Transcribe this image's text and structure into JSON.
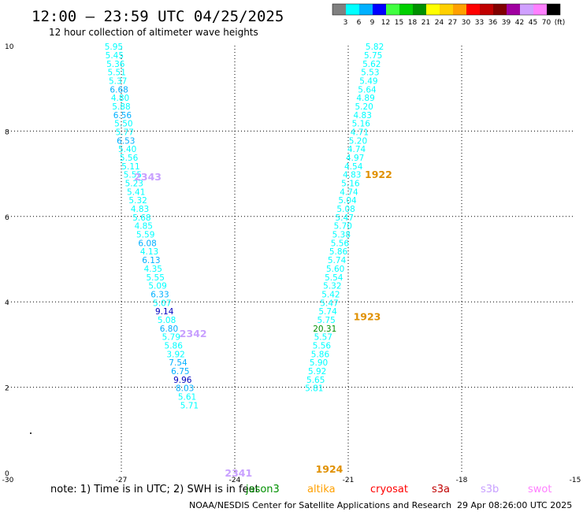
{
  "header": {
    "title": "12:00 – 23:59 UTC 04/25/2025",
    "subtitle": "12 hour collection of altimeter wave heights"
  },
  "colorbar": {
    "colors": [
      "#808080",
      "#00ffff",
      "#00b0ff",
      "#0000ff",
      "#40ff40",
      "#00d000",
      "#009000",
      "#ffff00",
      "#ffd000",
      "#ffa000",
      "#ff0000",
      "#c00000",
      "#800000",
      "#a000a0",
      "#d0a0ff",
      "#ff80ff",
      "#000000"
    ],
    "labels": [
      "3",
      "6",
      "9",
      "12",
      "15",
      "18",
      "21",
      "24",
      "27",
      "30",
      "33",
      "36",
      "39",
      "42",
      "45",
      "70",
      "(ft)"
    ]
  },
  "footer": {
    "note": "note:  1) Time is in UTC;  2) SWH is in feet",
    "satellites": [
      {
        "name": "jason3",
        "color": "#009000"
      },
      {
        "name": "altika",
        "color": "#ffa000"
      },
      {
        "name": "cryosat",
        "color": "#ff0000"
      },
      {
        "name": "s3a",
        "color": "#c00000"
      },
      {
        "name": "s3b",
        "color": "#c8a0ff"
      },
      {
        "name": "swot",
        "color": "#ff80ff"
      }
    ],
    "credit": "NOAA/NESDIS Center for Satellite Applications and Research",
    "timestamp": "29 Apr 08:26:00 UTC 2025"
  },
  "chart_data": {
    "type": "scatter",
    "xlim": [
      -30,
      -15
    ],
    "ylim": [
      0,
      10
    ],
    "x_ticks": [
      "-30",
      "-27",
      "-24",
      "-21",
      "-18",
      "-15"
    ],
    "y_ticks": [
      "0",
      "2",
      "4",
      "6",
      "8",
      "10"
    ],
    "grid": true,
    "tracks": [
      {
        "labels": [
          {
            "text": "2341",
            "x": -23.9,
            "y": 0.0,
            "color": "#c8a0ff"
          },
          {
            "text": "2342",
            "x": -25.1,
            "y": 3.27,
            "color": "#c8a0ff"
          },
          {
            "text": "2343",
            "x": -26.3,
            "y": 6.94,
            "color": "#c8a0ff"
          }
        ],
        "points": [
          {
            "x": -27.2,
            "y": 9.98,
            "v": "5.95",
            "color": "#00ffff"
          },
          {
            "x": -27.18,
            "y": 9.78,
            "v": "5.45",
            "color": "#00ffff"
          },
          {
            "x": -27.15,
            "y": 9.58,
            "v": "5.36",
            "color": "#00ffff"
          },
          {
            "x": -27.12,
            "y": 9.38,
            "v": "5.51",
            "color": "#00ffff"
          },
          {
            "x": -27.09,
            "y": 9.18,
            "v": "5.37",
            "color": "#00ffff"
          },
          {
            "x": -27.06,
            "y": 8.98,
            "v": "6.68",
            "color": "#00b0ff"
          },
          {
            "x": -27.03,
            "y": 8.78,
            "v": "4.80",
            "color": "#00ffff"
          },
          {
            "x": -27.0,
            "y": 8.58,
            "v": "5.88",
            "color": "#00ffff"
          },
          {
            "x": -26.97,
            "y": 8.38,
            "v": "6.56",
            "color": "#00b0ff"
          },
          {
            "x": -26.94,
            "y": 8.18,
            "v": "5.50",
            "color": "#00ffff"
          },
          {
            "x": -26.91,
            "y": 7.98,
            "v": "5.77",
            "color": "#00ffff"
          },
          {
            "x": -26.88,
            "y": 7.78,
            "v": "6.53",
            "color": "#00b0ff"
          },
          {
            "x": -26.84,
            "y": 7.58,
            "v": "5.40",
            "color": "#00ffff"
          },
          {
            "x": -26.8,
            "y": 7.38,
            "v": "5.56",
            "color": "#00ffff"
          },
          {
            "x": -26.75,
            "y": 7.18,
            "v": "5.11",
            "color": "#00ffff"
          },
          {
            "x": -26.7,
            "y": 6.98,
            "v": "5.55",
            "color": "#00ffff"
          },
          {
            "x": -26.66,
            "y": 6.78,
            "v": "5.23",
            "color": "#00ffff"
          },
          {
            "x": -26.61,
            "y": 6.58,
            "v": "5.41",
            "color": "#00ffff"
          },
          {
            "x": -26.56,
            "y": 6.38,
            "v": "5.32",
            "color": "#00ffff"
          },
          {
            "x": -26.51,
            "y": 6.18,
            "v": "4.83",
            "color": "#00ffff"
          },
          {
            "x": -26.46,
            "y": 5.98,
            "v": "5.68",
            "color": "#00ffff"
          },
          {
            "x": -26.41,
            "y": 5.78,
            "v": "4.85",
            "color": "#00ffff"
          },
          {
            "x": -26.36,
            "y": 5.58,
            "v": "5.59",
            "color": "#00ffff"
          },
          {
            "x": -26.31,
            "y": 5.38,
            "v": "6.08",
            "color": "#00b0ff"
          },
          {
            "x": -26.26,
            "y": 5.18,
            "v": "4.13",
            "color": "#00ffff"
          },
          {
            "x": -26.21,
            "y": 4.98,
            "v": "6.13",
            "color": "#00b0ff"
          },
          {
            "x": -26.16,
            "y": 4.78,
            "v": "4.35",
            "color": "#00ffff"
          },
          {
            "x": -26.1,
            "y": 4.58,
            "v": "5.55",
            "color": "#00ffff"
          },
          {
            "x": -26.04,
            "y": 4.38,
            "v": "5.09",
            "color": "#00ffff"
          },
          {
            "x": -25.98,
            "y": 4.18,
            "v": "6.33",
            "color": "#00b0ff"
          },
          {
            "x": -25.92,
            "y": 3.98,
            "v": "5.07",
            "color": "#00ffff"
          },
          {
            "x": -25.86,
            "y": 3.78,
            "v": "9.14",
            "color": "#0000c0"
          },
          {
            "x": -25.8,
            "y": 3.58,
            "v": "5.08",
            "color": "#00ffff"
          },
          {
            "x": -25.74,
            "y": 3.38,
            "v": "6.80",
            "color": "#00b0ff"
          },
          {
            "x": -25.68,
            "y": 3.18,
            "v": "5.79",
            "color": "#00ffff"
          },
          {
            "x": -25.62,
            "y": 2.98,
            "v": "5.86",
            "color": "#00ffff"
          },
          {
            "x": -25.56,
            "y": 2.78,
            "v": "3.92",
            "color": "#00ffff"
          },
          {
            "x": -25.5,
            "y": 2.58,
            "v": "7.54",
            "color": "#00b0ff"
          },
          {
            "x": -25.44,
            "y": 2.38,
            "v": "6.75",
            "color": "#00b0ff"
          },
          {
            "x": -25.38,
            "y": 2.18,
            "v": "9.96",
            "color": "#0000c0"
          },
          {
            "x": -25.32,
            "y": 1.98,
            "v": "8.03",
            "color": "#00b0ff"
          },
          {
            "x": -25.26,
            "y": 1.78,
            "v": "5.61",
            "color": "#00ffff"
          },
          {
            "x": -25.2,
            "y": 1.58,
            "v": "5.71",
            "color": "#00ffff"
          }
        ]
      },
      {
        "labels": [
          {
            "text": "1922",
            "x": -20.2,
            "y": 6.99,
            "color": "#e09000"
          },
          {
            "text": "1923",
            "x": -20.5,
            "y": 3.66,
            "color": "#e09000"
          },
          {
            "text": "1924",
            "x": -21.5,
            "y": 0.09,
            "color": "#e09000"
          }
        ],
        "points": [
          {
            "x": -20.3,
            "y": 9.98,
            "v": "5.82",
            "color": "#00ffff"
          },
          {
            "x": -20.34,
            "y": 9.78,
            "v": "5.75",
            "color": "#00ffff"
          },
          {
            "x": -20.38,
            "y": 9.58,
            "v": "5.62",
            "color": "#00ffff"
          },
          {
            "x": -20.42,
            "y": 9.38,
            "v": "5.53",
            "color": "#00ffff"
          },
          {
            "x": -20.46,
            "y": 9.18,
            "v": "5.49",
            "color": "#00ffff"
          },
          {
            "x": -20.5,
            "y": 8.98,
            "v": "5.64",
            "color": "#00ffff"
          },
          {
            "x": -20.54,
            "y": 8.78,
            "v": "4.89",
            "color": "#00ffff"
          },
          {
            "x": -20.58,
            "y": 8.58,
            "v": "5.20",
            "color": "#00ffff"
          },
          {
            "x": -20.62,
            "y": 8.38,
            "v": "4.83",
            "color": "#00ffff"
          },
          {
            "x": -20.66,
            "y": 8.18,
            "v": "5.16",
            "color": "#00ffff"
          },
          {
            "x": -20.7,
            "y": 7.98,
            "v": "4.71",
            "color": "#00ffff"
          },
          {
            "x": -20.74,
            "y": 7.78,
            "v": "5.20",
            "color": "#00ffff"
          },
          {
            "x": -20.78,
            "y": 7.58,
            "v": "4.74",
            "color": "#00ffff"
          },
          {
            "x": -20.82,
            "y": 7.38,
            "v": "4.97",
            "color": "#00ffff"
          },
          {
            "x": -20.86,
            "y": 7.18,
            "v": "4.54",
            "color": "#00ffff"
          },
          {
            "x": -20.9,
            "y": 6.98,
            "v": "4.83",
            "color": "#00ffff"
          },
          {
            "x": -20.94,
            "y": 6.78,
            "v": "5.16",
            "color": "#00ffff"
          },
          {
            "x": -20.98,
            "y": 6.58,
            "v": "4.74",
            "color": "#00ffff"
          },
          {
            "x": -21.02,
            "y": 6.38,
            "v": "5.04",
            "color": "#00ffff"
          },
          {
            "x": -21.06,
            "y": 6.18,
            "v": "5.08",
            "color": "#00ffff"
          },
          {
            "x": -21.1,
            "y": 5.98,
            "v": "5.47",
            "color": "#00ffff"
          },
          {
            "x": -21.14,
            "y": 5.78,
            "v": "5.70",
            "color": "#00ffff"
          },
          {
            "x": -21.18,
            "y": 5.58,
            "v": "5.38",
            "color": "#00ffff"
          },
          {
            "x": -21.22,
            "y": 5.38,
            "v": "5.56",
            "color": "#00ffff"
          },
          {
            "x": -21.26,
            "y": 5.18,
            "v": "5.86",
            "color": "#00ffff"
          },
          {
            "x": -21.3,
            "y": 4.98,
            "v": "5.74",
            "color": "#00ffff"
          },
          {
            "x": -21.34,
            "y": 4.78,
            "v": "5.60",
            "color": "#00ffff"
          },
          {
            "x": -21.38,
            "y": 4.58,
            "v": "5.54",
            "color": "#00ffff"
          },
          {
            "x": -21.42,
            "y": 4.38,
            "v": "5.32",
            "color": "#00ffff"
          },
          {
            "x": -21.46,
            "y": 4.18,
            "v": "5.42",
            "color": "#00ffff"
          },
          {
            "x": -21.5,
            "y": 3.98,
            "v": "5.47",
            "color": "#00ffff"
          },
          {
            "x": -21.54,
            "y": 3.78,
            "v": "5.74",
            "color": "#00ffff"
          },
          {
            "x": -21.58,
            "y": 3.58,
            "v": "5.75",
            "color": "#00ffff"
          },
          {
            "x": -21.62,
            "y": 3.38,
            "v": "20.31",
            "color": "#009000"
          },
          {
            "x": -21.66,
            "y": 3.18,
            "v": "5.57",
            "color": "#00ffff"
          },
          {
            "x": -21.7,
            "y": 2.98,
            "v": "5.56",
            "color": "#00ffff"
          },
          {
            "x": -21.74,
            "y": 2.78,
            "v": "5.86",
            "color": "#00ffff"
          },
          {
            "x": -21.78,
            "y": 2.58,
            "v": "5.90",
            "color": "#00ffff"
          },
          {
            "x": -21.82,
            "y": 2.38,
            "v": "5.92",
            "color": "#00ffff"
          },
          {
            "x": -21.86,
            "y": 2.18,
            "v": "5.65",
            "color": "#00ffff"
          },
          {
            "x": -21.9,
            "y": 1.98,
            "v": "5.81",
            "color": "#00ffff"
          }
        ]
      }
    ]
  }
}
